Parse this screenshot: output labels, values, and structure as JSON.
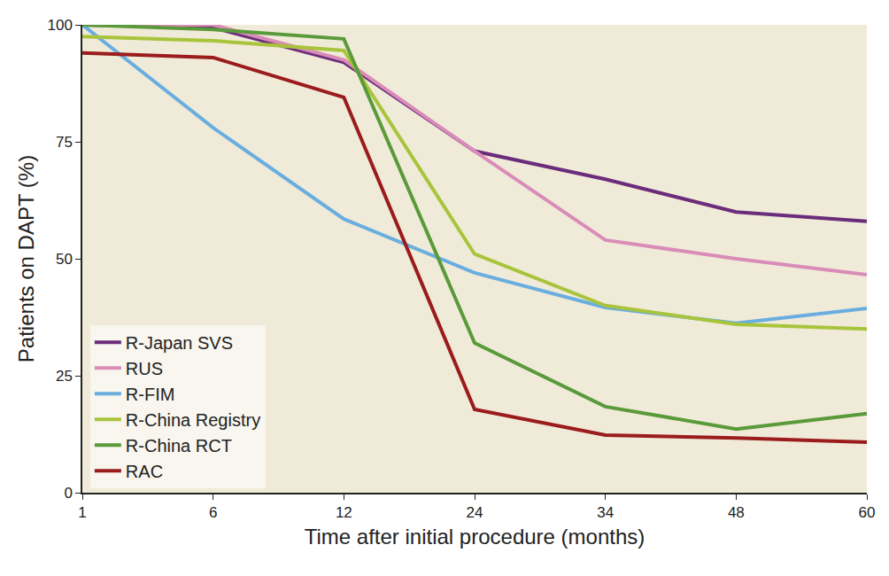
{
  "chart_data": {
    "type": "line",
    "x_label": "Time after initial procedure (months)",
    "y_label": "Patients on DAPT (%)",
    "categories": [
      "1",
      "6",
      "12",
      "24",
      "34",
      "48",
      "60"
    ],
    "series": [
      {
        "name": "R-Japan SVS",
        "color": "#6b2d7b",
        "values": [
          100,
          99.4,
          92,
          73,
          67,
          60,
          58
        ]
      },
      {
        "name": "RUS",
        "color": "#d98cb8",
        "values": [
          100,
          100,
          92.5,
          73,
          54,
          50,
          46.6
        ]
      },
      {
        "name": "R-FIM",
        "color": "#6aaee0",
        "values": [
          100,
          78,
          58.5,
          47,
          39.6,
          36.2,
          39.4
        ]
      },
      {
        "name": "R-China Registry",
        "color": "#a8c43c",
        "values": [
          97.5,
          96.6,
          94.5,
          51,
          40,
          36,
          35
        ]
      },
      {
        "name": "R-China RCT",
        "color": "#5a9a3a",
        "values": [
          100,
          99,
          97,
          32,
          18.4,
          13.6,
          16.9
        ]
      },
      {
        "name": "RAC",
        "color": "#9b1c1c",
        "values": [
          94,
          93,
          84.5,
          17.8,
          12.3,
          11.7,
          10.8
        ]
      }
    ],
    "ylim": [
      0,
      100
    ],
    "yticks": [
      0,
      25,
      50,
      75,
      100
    ],
    "grid": false,
    "legend": "bottom left"
  }
}
